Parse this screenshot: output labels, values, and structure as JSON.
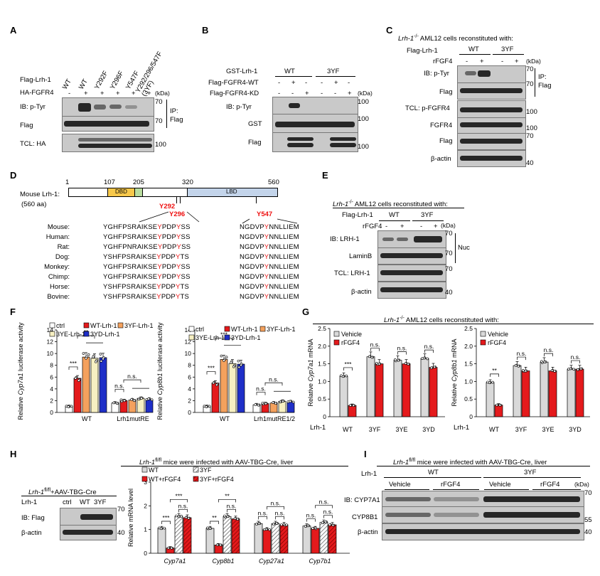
{
  "panels": {
    "A": "A",
    "B": "B",
    "C": "C",
    "D": "D",
    "E": "E",
    "F": "F",
    "G": "G",
    "H": "H",
    "I": "I"
  },
  "panelA": {
    "row_flag": "Flag-Lrh-1",
    "row_ha": "HA-FGFR4",
    "cols": [
      "WT",
      "WT",
      "Y292F",
      "Y296F",
      "Y547F",
      "Y292/296/547F (3YF)"
    ],
    "ha_signs": [
      "-",
      "+",
      "+",
      "+",
      "+",
      "+"
    ],
    "kda": "(kDa)",
    "ip": "IP:",
    "ip2": "Flag",
    "blots": [
      {
        "label": "IB: p-Tyr",
        "mw": "70"
      },
      {
        "label": "Flag",
        "mw": "70"
      },
      {
        "label": "TCL: HA",
        "mw": "100"
      }
    ]
  },
  "panelB": {
    "rows": [
      "GST-Lrh-1",
      "Flag-FGFR4-WT",
      "Flag-FGFR4-KD"
    ],
    "groups": [
      "WT",
      "3YF"
    ],
    "signs_wt": [
      "-",
      "+",
      "-",
      "-",
      "+",
      "-"
    ],
    "signs_kd": [
      "-",
      "-",
      "+",
      "-",
      "-",
      "+"
    ],
    "kda": "(kDa)",
    "blots": [
      {
        "label": "IB: p-Tyr",
        "mw": "100"
      },
      {
        "label": "GST",
        "mw": "100"
      },
      {
        "label": "Flag",
        "mw": "100"
      }
    ]
  },
  "panelC": {
    "title_pre": "Lrh-1",
    "title_sup": "-/-",
    "title_post": " AML12 cells reconstituted with:",
    "row1": "Flag-Lrh-1",
    "row2": "rFGF4",
    "groups": [
      "WT",
      "3YF"
    ],
    "signs": [
      "-",
      "+",
      "-",
      "+"
    ],
    "kda": "(kDa)",
    "ip": "IP:",
    "ip2": "Flag",
    "blots": [
      {
        "label": "IB: p-Tyr",
        "mw": "70"
      },
      {
        "label": "Flag",
        "mw": "70"
      },
      {
        "label": "TCL: p-FGFR4",
        "mw": "100"
      },
      {
        "label": "FGFR4",
        "mw": "100"
      },
      {
        "label": "Flag",
        "mw": "70"
      },
      {
        "label": "β-actin",
        "mw": "40"
      }
    ]
  },
  "panelD": {
    "protein": "Mouse Lrh-1:",
    "length": "(560 aa)",
    "ticks": [
      "1",
      "107",
      "205",
      "320",
      "560"
    ],
    "dbd": "DBD",
    "lbd": "LBD",
    "sites": [
      "Y292",
      "Y296",
      "Y547"
    ],
    "species": [
      "Mouse:",
      "Human:",
      "Rat:",
      "Dog:",
      "Monkey:",
      "Chimp:",
      "Horse:",
      "Bovine:"
    ],
    "seq1_pre": [
      "YGHFPSRAIKSE",
      "YGHFPSRAIKSE",
      "YGHFPNRAIKSE",
      "YSHFPSRAIKSE",
      "YGHFPSRAIKSE",
      "YGHFPSRAIKSE",
      "YSHFPSRAIKSE",
      "YSHFPSRAIKSE"
    ],
    "seq1_y1": [
      "Y",
      "Y",
      "Y",
      "Y",
      "Y",
      "Y",
      "Y",
      "Y"
    ],
    "seq1_mid": [
      "PDP",
      "PDP",
      "PDP",
      "PDP",
      "PDP",
      "PDP",
      "PDP",
      "PDP"
    ],
    "seq1_y2": [
      "Y",
      "Y",
      "Y",
      "Y",
      "Y",
      "Y",
      "Y",
      "Y"
    ],
    "seq1_post": [
      "SS",
      "SS",
      "SS",
      "TS",
      "SS",
      "SS",
      "TS",
      "TS"
    ],
    "seq2_pre": [
      "NGDVP",
      "NGDVP",
      "NGDVP",
      "NGDVP",
      "NGDVP",
      "NGDVP",
      "NGDVP",
      "NGDVP"
    ],
    "seq2_y": [
      "Y",
      "Y",
      "Y",
      "Y",
      "Y",
      "Y",
      "Y",
      "Y"
    ],
    "seq2_post": [
      "NNLLIEM",
      "NNLLIEM",
      "NNLLIEM",
      "NNLLIEM",
      "NNLLIEM",
      "NNLLIEM",
      "NNLLIEM",
      "NNLLIEM"
    ]
  },
  "panelE": {
    "title_pre": "Lrh-1",
    "title_sup": "-/-",
    "title_post": " AML12 cells reconstituted with:",
    "row1": "Flag-Lrh-1",
    "row2": "rFGF4",
    "groups": [
      "WT",
      "3YF"
    ],
    "signs": [
      "-",
      "+",
      "-",
      "+"
    ],
    "kda": "(kDa)",
    "nuc": "Nuc",
    "blots": [
      {
        "label": "IB: LRH-1",
        "mw": "70"
      },
      {
        "label": "LaminB",
        "mw": "70"
      },
      {
        "label": "TCL: LRH-1",
        "mw": "70"
      },
      {
        "label": "β-actin",
        "mw": "40"
      }
    ]
  },
  "chart_data": [
    {
      "type": "bar",
      "panel": "F-left",
      "ylabel": "Relative Cyp7a1 luciferase activity",
      "ylim": [
        0,
        14
      ],
      "yticks": [
        0,
        2,
        4,
        6,
        8,
        10,
        12,
        14
      ],
      "groups": [
        "WT",
        "Lrh1mutRE"
      ],
      "series": [
        {
          "name": "ctrl",
          "color": "#ffffff",
          "values": [
            1.0,
            1.6
          ]
        },
        {
          "name": "WT-Lrh-1",
          "color": "#e41a1c",
          "values": [
            5.8,
            2.0
          ]
        },
        {
          "name": "3YF-Lrh-1",
          "color": "#f4a15d",
          "values": [
            9.4,
            2.1
          ]
        },
        {
          "name": "3YE-Lrh-1",
          "color": "#f7f0c2",
          "values": [
            9.2,
            2.4
          ]
        },
        {
          "name": "3YD-Lrh-1",
          "color": "#1f2fc8",
          "values": [
            9.3,
            2.2
          ]
        }
      ],
      "sig": [
        "***",
        "**",
        "n.s.",
        "n.s."
      ]
    },
    {
      "type": "bar",
      "panel": "F-right",
      "ylabel": "Relative Cyp8b1 luciferase activity",
      "ylim": [
        0,
        14
      ],
      "yticks": [
        0,
        2,
        4,
        6,
        8,
        10,
        12,
        14
      ],
      "groups": [
        "WT",
        "Lrh1mutRE1/2"
      ],
      "series": [
        {
          "name": "ctrl",
          "color": "#ffffff",
          "values": [
            1.0,
            1.3
          ]
        },
        {
          "name": "WT-Lrh-1",
          "color": "#e41a1c",
          "values": [
            5.0,
            1.5
          ]
        },
        {
          "name": "3YF-Lrh-1",
          "color": "#f4a15d",
          "values": [
            9.0,
            1.6
          ]
        },
        {
          "name": "3YE-Lrh-1",
          "color": "#f7f0c2",
          "values": [
            8.3,
            1.9
          ]
        },
        {
          "name": "3YD-Lrh-1",
          "color": "#1f2fc8",
          "values": [
            8.2,
            1.8
          ]
        }
      ],
      "sig": [
        "***",
        "***",
        "n.s.",
        "n.s."
      ]
    },
    {
      "type": "bar",
      "panel": "G-left",
      "ylabel": "Relative Cyp7a1 mRNA",
      "ylim": [
        0,
        2.5
      ],
      "yticks": [
        "0",
        "0.5",
        "1.0",
        "1.5",
        "2.0",
        "2.5"
      ],
      "categories": [
        "WT",
        "3YF",
        "3YE",
        "3YD"
      ],
      "series": [
        {
          "name": "Vehicle",
          "color": "#d9d9d9",
          "values": [
            1.15,
            1.7,
            1.6,
            1.65
          ]
        },
        {
          "name": "rFGF4",
          "color": "#e41a1c",
          "values": [
            0.32,
            1.5,
            1.5,
            1.4
          ]
        }
      ],
      "sig": [
        "***",
        "n.s.",
        "n.s.",
        "n.s."
      ]
    },
    {
      "type": "bar",
      "panel": "G-right",
      "ylabel": "Relative Cyp8b1 mRNA",
      "ylim": [
        0,
        2.5
      ],
      "yticks": [
        "0",
        "0.5",
        "1.0",
        "1.5",
        "2.0",
        "2.5"
      ],
      "categories": [
        "WT",
        "3YF",
        "3YE",
        "3YD"
      ],
      "series": [
        {
          "name": "Vehicle",
          "color": "#d9d9d9",
          "values": [
            0.97,
            1.45,
            1.55,
            1.35
          ]
        },
        {
          "name": "rFGF4",
          "color": "#e41a1c",
          "values": [
            0.33,
            1.3,
            1.3,
            1.35
          ]
        }
      ],
      "sig": [
        "**",
        "n.s.",
        "n.s.",
        "n.s."
      ]
    },
    {
      "type": "bar",
      "panel": "H",
      "ylabel": "Relative mRNA level",
      "ylim": [
        0,
        3
      ],
      "yticks": [
        0,
        1,
        2,
        3
      ],
      "categories": [
        "Cyp7a1",
        "Cyp8b1",
        "Cyp27a1",
        "Cyp7b1"
      ],
      "series": [
        {
          "name": "WT",
          "color": "#d9d9d9",
          "values": [
            1.05,
            1.05,
            1.25,
            1.15
          ]
        },
        {
          "name": "WT+rFGF4",
          "color": "#e41a1c",
          "values": [
            0.22,
            0.35,
            1.0,
            1.05
          ]
        },
        {
          "name": "3YF",
          "color": "#d9d9d9",
          "hatch": true,
          "values": [
            1.55,
            1.55,
            1.25,
            1.3
          ]
        },
        {
          "name": "3YF+rFGF4",
          "color": "#e41a1c",
          "hatch": true,
          "values": [
            1.5,
            1.45,
            1.2,
            1.2
          ]
        }
      ],
      "sig": [
        "***",
        "**",
        "n.s.",
        "n.s.",
        "***",
        "**",
        "n.s.",
        "n.s.",
        "n.s.",
        "n.s.",
        "n.s.",
        "n.s."
      ]
    }
  ],
  "panelF": {
    "xlab": [
      "WT",
      "Lrh1mutRE",
      "WT",
      "Lrh1mutRE1/2"
    ]
  },
  "panelG": {
    "title_pre": "Lrh-1",
    "title_sup": "-/-",
    "title_post": " AML12 cells reconstituted with:",
    "rowlab": "Lrh-1"
  },
  "panelH": {
    "title_pre": "Lrh-1",
    "title_sup": "fl/fl",
    "title_post": " mice were infected with AAV-TBG-Cre, liver",
    "sub_pre": "Lrh-1",
    "sub_sup": "fl/fl",
    "sub_post": "+AAV-TBG-Cre",
    "lanes": [
      "ctrl",
      "WT",
      "3YF"
    ],
    "rowlab": "Lrh-1",
    "blots": [
      {
        "label": "IB: Flag",
        "mw": "70"
      },
      {
        "label": "β-actin",
        "mw": "40"
      }
    ]
  },
  "panelI": {
    "title_pre": "Lrh-1",
    "title_sup": "fl/fl",
    "title_post": " mice were infected with AAV-TBG-Cre, liver",
    "rowlab": "Lrh-1",
    "groups": [
      "WT",
      "3YF"
    ],
    "subs": [
      "Vehicle",
      "rFGF4",
      "Vehicle",
      "rFGF4"
    ],
    "kda": "(kDa)",
    "blots": [
      {
        "label": "IB: CYP7A1",
        "mw": "70"
      },
      {
        "label": "CYP8B1",
        "mw": "55"
      },
      {
        "label": "β-actin",
        "mw": "40"
      }
    ]
  }
}
